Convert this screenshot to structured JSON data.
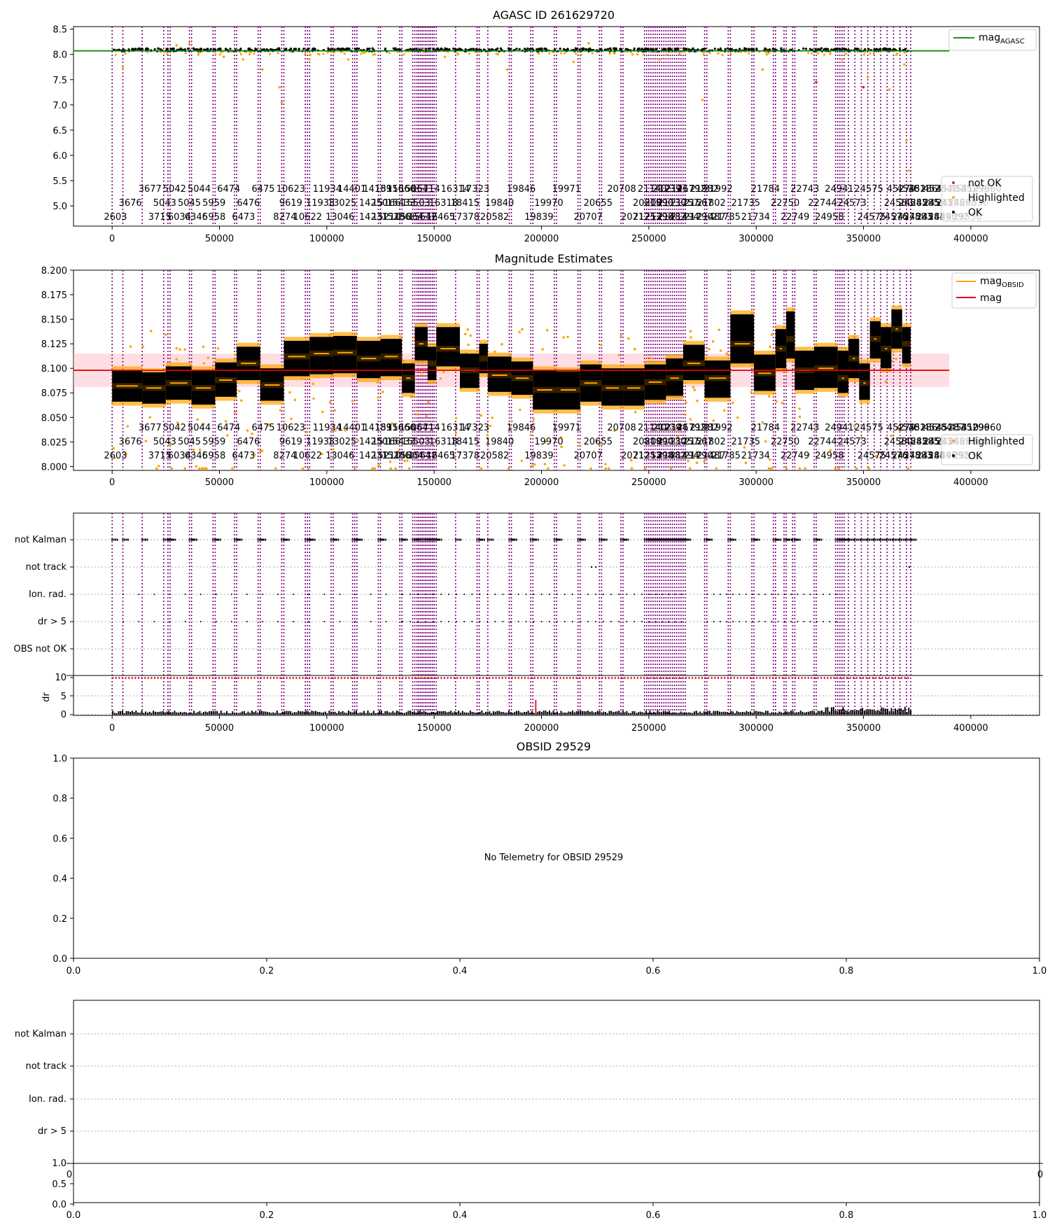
{
  "chart_data": [
    {
      "id": "agasc",
      "type": "scatter",
      "title": "AGASC ID 261629720",
      "xlim": [
        -18000,
        432000
      ],
      "ylim": [
        4.6,
        8.55
      ],
      "xticks": [
        0,
        50000,
        100000,
        150000,
        200000,
        250000,
        300000,
        350000,
        400000
      ],
      "yticks": [
        "5.0",
        "5.5",
        "6.0",
        "6.5",
        "7.0",
        "7.5",
        "8.0",
        "8.5"
      ],
      "legend_upper": "mag$_{AGASC}$",
      "legend_lower": [
        "not OK",
        "Highlighted",
        "OK"
      ],
      "mag_agasc": 8.07,
      "ok_level": 8.09,
      "highlighted_points": [
        [
          5000,
          7.75
        ],
        [
          30000,
          8.18
        ],
        [
          36000,
          8.22
        ],
        [
          52000,
          7.95
        ],
        [
          61000,
          7.9
        ],
        [
          70000,
          7.7
        ],
        [
          78000,
          7.35
        ],
        [
          79000,
          7.05
        ],
        [
          92000,
          7.9
        ],
        [
          110000,
          7.9
        ],
        [
          155000,
          7.95
        ],
        [
          184000,
          7.7
        ],
        [
          215000,
          7.85
        ],
        [
          222000,
          8.22
        ],
        [
          255000,
          7.9
        ],
        [
          275000,
          7.1
        ],
        [
          303000,
          7.7
        ],
        [
          340000,
          7.9
        ],
        [
          352000,
          7.55
        ],
        [
          362000,
          7.3
        ],
        [
          369000,
          7.8
        ],
        [
          370000,
          6.3
        ],
        [
          371000,
          5.7
        ]
      ],
      "not_ok_points": [
        [
          328000,
          7.45
        ],
        [
          350000,
          7.35
        ]
      ]
    },
    {
      "id": "mag",
      "type": "scatter",
      "title": "Magnitude Estimates",
      "xlim": [
        -18000,
        432000
      ],
      "ylim": [
        7.996,
        8.2
      ],
      "xticks": [
        0,
        50000,
        100000,
        150000,
        200000,
        250000,
        300000,
        350000,
        400000
      ],
      "yticks": [
        "8.000",
        "8.025",
        "8.050",
        "8.075",
        "8.100",
        "8.125",
        "8.150",
        "8.175",
        "8.200"
      ],
      "legend_upper": [
        "mag$_{OBSID}$",
        "mag"
      ],
      "legend_lower": [
        "Highlighted",
        "OK"
      ],
      "mag": 8.098,
      "mag_band": [
        8.081,
        8.115
      ],
      "segments": [
        [
          0,
          14000,
          8.082,
          8.066,
          8.098
        ],
        [
          14000,
          25000,
          8.08,
          8.064,
          8.096
        ],
        [
          25000,
          37000,
          8.085,
          8.068,
          8.102
        ],
        [
          37000,
          48000,
          8.08,
          8.063,
          8.098
        ],
        [
          48000,
          58000,
          8.088,
          8.071,
          8.106
        ],
        [
          58000,
          69000,
          8.105,
          8.088,
          8.122
        ],
        [
          69000,
          80000,
          8.083,
          8.067,
          8.1
        ],
        [
          80000,
          92000,
          8.112,
          8.092,
          8.128
        ],
        [
          92000,
          103000,
          8.115,
          8.094,
          8.132
        ],
        [
          103000,
          114000,
          8.116,
          8.095,
          8.133
        ],
        [
          114000,
          125000,
          8.11,
          8.09,
          8.128
        ],
        [
          125000,
          135000,
          8.112,
          8.092,
          8.13
        ],
        [
          135000,
          141000,
          8.09,
          8.075,
          8.105
        ],
        [
          141000,
          147000,
          8.125,
          8.108,
          8.142
        ],
        [
          147000,
          151000,
          8.105,
          8.088,
          8.122
        ],
        [
          151000,
          162000,
          8.12,
          8.102,
          8.142
        ],
        [
          162000,
          171000,
          8.098,
          8.08,
          8.115
        ],
        [
          171000,
          175000,
          8.11,
          8.095,
          8.125
        ],
        [
          175000,
          186000,
          8.093,
          8.076,
          8.112
        ],
        [
          186000,
          196000,
          8.09,
          8.073,
          8.107
        ],
        [
          196000,
          207000,
          8.078,
          8.058,
          8.098
        ],
        [
          207000,
          218000,
          8.078,
          8.058,
          8.097
        ],
        [
          218000,
          228000,
          8.085,
          8.066,
          8.104
        ],
        [
          228000,
          238000,
          8.08,
          8.062,
          8.1
        ],
        [
          238000,
          248000,
          8.08,
          8.062,
          8.1
        ],
        [
          248000,
          258000,
          8.086,
          8.068,
          8.104
        ],
        [
          258000,
          266000,
          8.09,
          8.072,
          8.11
        ],
        [
          266000,
          276000,
          8.105,
          8.088,
          8.124
        ],
        [
          276000,
          288000,
          8.09,
          8.07,
          8.108
        ],
        [
          288000,
          299000,
          8.125,
          8.105,
          8.155
        ],
        [
          299000,
          309000,
          8.095,
          8.077,
          8.114
        ],
        [
          309000,
          314000,
          8.12,
          8.1,
          8.14
        ],
        [
          314000,
          318000,
          8.13,
          8.11,
          8.158
        ],
        [
          318000,
          327000,
          8.098,
          8.078,
          8.118
        ],
        [
          327000,
          338000,
          8.1,
          8.08,
          8.122
        ],
        [
          338000,
          343000,
          8.09,
          8.075,
          8.118
        ],
        [
          343000,
          348000,
          8.11,
          8.09,
          8.13
        ],
        [
          348000,
          353000,
          8.085,
          8.068,
          8.105
        ],
        [
          353000,
          358000,
          8.13,
          8.11,
          8.148
        ],
        [
          358000,
          363000,
          8.12,
          8.1,
          8.142
        ],
        [
          363000,
          368000,
          8.14,
          8.12,
          8.16
        ],
        [
          368000,
          372000,
          8.125,
          8.105,
          8.142
        ]
      ]
    },
    {
      "id": "flags",
      "type": "scatter",
      "xlim": [
        -18000,
        432000
      ],
      "xticks": [
        0,
        50000,
        100000,
        150000,
        200000,
        250000,
        300000,
        350000,
        400000
      ],
      "categories": [
        "not Kalman",
        "not track",
        "Ion. rad.",
        "dr > 5",
        "OBS not OK"
      ],
      "ylabel": "dr",
      "dr_yticks": [
        "0",
        "5",
        "10"
      ],
      "dr_level": 10,
      "not_track_points": [
        223000,
        225000,
        371000
      ]
    },
    {
      "id": "obsid",
      "type": "scatter",
      "title": "OBSID 29529",
      "message": "No Telemetry for OBSID 29529",
      "xlim": [
        0,
        1
      ],
      "ylim": [
        0,
        1
      ],
      "xticks": [
        "0.0",
        "0.2",
        "0.4",
        "0.6",
        "0.8",
        "1.0"
      ],
      "yticks": [
        "0.0",
        "0.2",
        "0.4",
        "0.6",
        "0.8",
        "1.0"
      ]
    },
    {
      "id": "obsflags",
      "type": "scatter",
      "categories": [
        "not Kalman",
        "not track",
        "Ion. rad.",
        "dr > 5"
      ],
      "top_left_tick": "0",
      "top_right_tick": "0",
      "small_yticks": [
        "0.0",
        "0.5",
        "1.0"
      ],
      "xticks": [
        "0.0",
        "0.2",
        "0.4",
        "0.6",
        "0.8",
        "1.0"
      ]
    }
  ],
  "obsids": {
    "x": [
      0,
      5000,
      14000,
      24000,
      26000,
      27000,
      36000,
      37000,
      47000,
      48000,
      57000,
      58000,
      68000,
      69000,
      79000,
      80000,
      90000,
      91000,
      92000,
      102000,
      103000,
      112000,
      113000,
      114000,
      124000,
      125000,
      134000,
      135000,
      140000,
      141000,
      142000,
      142800,
      143600,
      144400,
      145200,
      146000,
      146800,
      147600,
      148400,
      149200,
      150000,
      151000,
      160000,
      170000,
      171000,
      175000,
      185000,
      186000,
      195000,
      196000,
      206000,
      207000,
      217000,
      218000,
      227000,
      228000,
      237000,
      238000,
      248000,
      249000,
      250000,
      251000,
      252000,
      253000,
      254000,
      255000,
      256000,
      257000,
      258000,
      259000,
      260000,
      261000,
      262000,
      263000,
      264000,
      265000,
      266000,
      267000,
      276000,
      277000,
      287000,
      288000,
      298000,
      299000,
      308000,
      309000,
      313000,
      314000,
      317000,
      318000,
      327000,
      328000,
      337000,
      338000,
      339000,
      340000,
      341000,
      343000,
      346000,
      349000,
      352000,
      355000,
      358000,
      361000,
      364000,
      367000,
      370000,
      372000
    ],
    "rows": [
      [
        [
          35,
          "3677"
        ],
        [
          60,
          "5042"
        ],
        [
          85,
          "5044"
        ],
        [
          115,
          "6474"
        ],
        [
          150,
          "6475"
        ],
        [
          178,
          "10623"
        ],
        [
          215,
          "11934"
        ],
        [
          240,
          "14401"
        ],
        [
          266,
          "14189"
        ],
        [
          278,
          "15316"
        ],
        [
          290,
          "15666"
        ],
        [
          303,
          "15064"
        ],
        [
          315,
          "15714"
        ],
        [
          345,
          "16314"
        ],
        [
          365,
          "17323"
        ],
        [
          412,
          "19846"
        ],
        [
          458,
          "19971"
        ],
        [
          514,
          "20708"
        ],
        [
          545,
          "21140"
        ],
        [
          560,
          "21239"
        ],
        [
          573,
          "21467"
        ],
        [
          585,
          "21792"
        ],
        [
          598,
          "21982"
        ],
        [
          612,
          "21992"
        ],
        [
          660,
          "21784"
        ],
        [
          700,
          "22743"
        ],
        [
          735,
          "24941"
        ],
        [
          765,
          "24575"
        ],
        [
          798,
          "45279"
        ],
        [
          808,
          "45281"
        ],
        [
          820,
          "45286"
        ],
        [
          835,
          "45284"
        ],
        [
          848,
          "45287"
        ],
        [
          862,
          "45310"
        ],
        [
          873,
          "45296"
        ],
        [
          885,
          "29960"
        ]
      ],
      [
        [
          15,
          "3676"
        ],
        [
          50,
          "5043"
        ],
        [
          75,
          "5045"
        ],
        [
          100,
          "5959"
        ],
        [
          135,
          "6476"
        ],
        [
          178,
          "9619"
        ],
        [
          208,
          "11933"
        ],
        [
          230,
          "13025"
        ],
        [
          262,
          "14250"
        ],
        [
          275,
          "15166"
        ],
        [
          290,
          "15433"
        ],
        [
          305,
          "15503"
        ],
        [
          333,
          "16318"
        ],
        [
          355,
          "18415"
        ],
        [
          390,
          "19840"
        ],
        [
          440,
          "19970"
        ],
        [
          490,
          "20655"
        ],
        [
          540,
          "20819"
        ],
        [
          552,
          "20890"
        ],
        [
          565,
          "21130"
        ],
        [
          578,
          "21257"
        ],
        [
          592,
          "21567"
        ],
        [
          605,
          "21802"
        ],
        [
          640,
          "21735"
        ],
        [
          680,
          "22750"
        ],
        [
          718,
          "22744"
        ],
        [
          748,
          "24573"
        ],
        [
          795,
          "24580"
        ],
        [
          810,
          "24582"
        ],
        [
          822,
          "24585"
        ],
        [
          835,
          "24583"
        ],
        [
          848,
          "24586"
        ],
        [
          860,
          "24588"
        ],
        [
          872,
          "29536"
        ]
      ],
      [
        [
          0,
          "2603"
        ],
        [
          45,
          "3715"
        ],
        [
          65,
          "6034"
        ],
        [
          82,
          "6346"
        ],
        [
          100,
          "5958"
        ],
        [
          130,
          "6473"
        ],
        [
          172,
          "8274"
        ],
        [
          195,
          "10622"
        ],
        [
          228,
          "13046"
        ],
        [
          262,
          "14231"
        ],
        [
          275,
          "15210"
        ],
        [
          285,
          "15286"
        ],
        [
          298,
          "15864"
        ],
        [
          312,
          "15642"
        ],
        [
          330,
          "16465"
        ],
        [
          355,
          "17378"
        ],
        [
          385,
          "20582"
        ],
        [
          430,
          "19839"
        ],
        [
          480,
          "20707"
        ],
        [
          528,
          "20712"
        ],
        [
          540,
          "21253"
        ],
        [
          552,
          "21298"
        ],
        [
          565,
          "21482"
        ],
        [
          578,
          "21494"
        ],
        [
          592,
          "21790"
        ],
        [
          605,
          "21487"
        ],
        [
          620,
          "21785"
        ],
        [
          650,
          "21734"
        ],
        [
          690,
          "22749"
        ],
        [
          725,
          "24958"
        ],
        [
          768,
          "24575"
        ],
        [
          790,
          "24576"
        ],
        [
          803,
          "24578"
        ],
        [
          815,
          "24583"
        ],
        [
          828,
          "24584"
        ],
        [
          840,
          "24590"
        ],
        [
          852,
          "24592"
        ],
        [
          865,
          "29536"
        ]
      ]
    ]
  }
}
